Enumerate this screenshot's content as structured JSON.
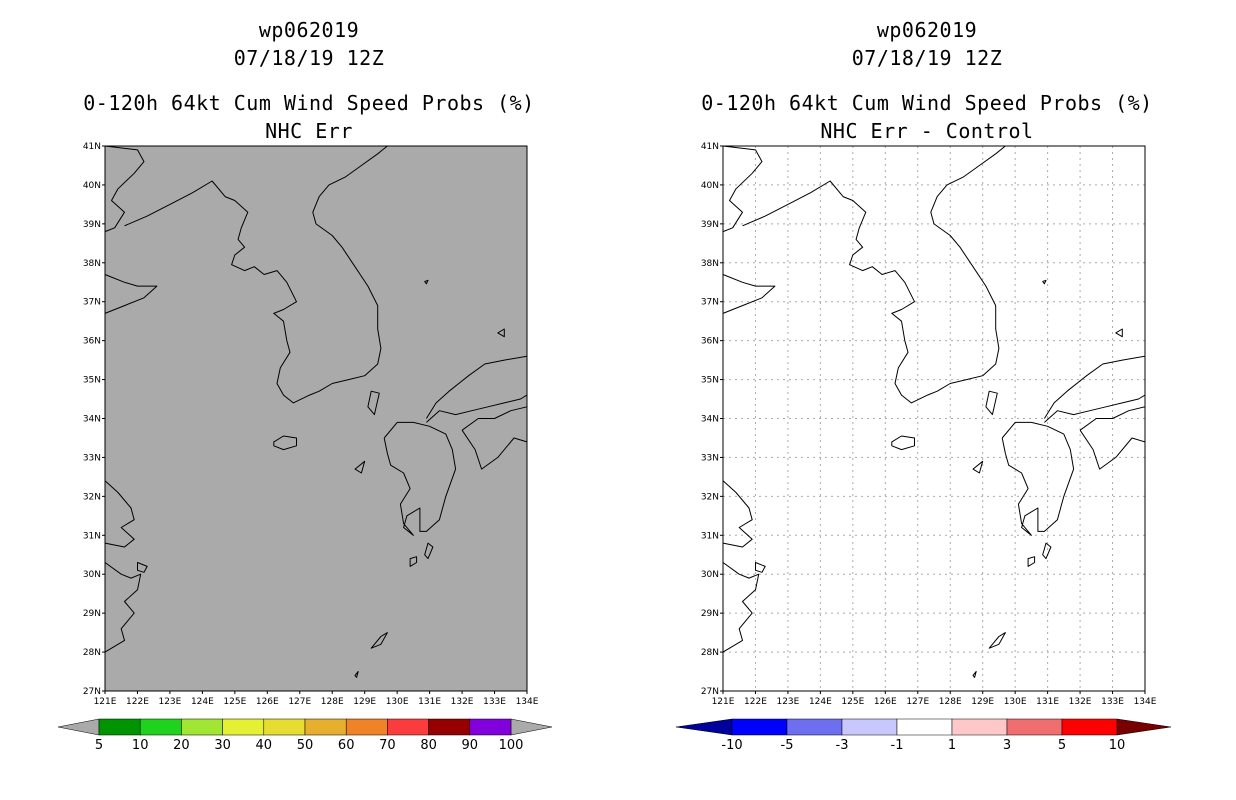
{
  "panels": [
    {
      "id": "left",
      "storm_id": "wp062019",
      "date": "07/18/19 12Z",
      "product": "0-120h 64kt Cum Wind Speed Probs (%)",
      "subtitle": "NHC Err",
      "map_fill": "#aaaaaa",
      "grid": false,
      "colorbar": {
        "labels": [
          "5",
          "10",
          "20",
          "30",
          "40",
          "50",
          "60",
          "70",
          "80",
          "90",
          "100"
        ],
        "colors": [
          "#009400",
          "#1ed21e",
          "#a0e632",
          "#e6f032",
          "#e6dc32",
          "#e6af2d",
          "#f08228",
          "#fa3c3c",
          "#960000",
          "#8200dc"
        ],
        "end_color": "#aaaaaa"
      }
    },
    {
      "id": "right",
      "storm_id": "wp062019",
      "date": "07/18/19 12Z",
      "product": "0-120h 64kt Cum Wind Speed Probs (%)",
      "subtitle": "NHC Err - Control",
      "map_fill": "#ffffff",
      "grid": true,
      "colorbar": {
        "labels": [
          "-10",
          "-5",
          "-3",
          "-1",
          "1",
          "3",
          "5",
          "10"
        ],
        "colors": [
          "#0000ff",
          "#6e6ef0",
          "#c8c8ff",
          "#ffffff",
          "#ffc8c8",
          "#f06e6e",
          "#ff0000"
        ],
        "start_color": "#00009b",
        "end_color": "#780000"
      }
    }
  ],
  "map_data": {
    "region": "Korean Peninsula, Yellow Sea, East China Sea, southern Japan",
    "lon_labels": [
      "121E",
      "122E",
      "123E",
      "124E",
      "125E",
      "126E",
      "127E",
      "128E",
      "129E",
      "130E",
      "131E",
      "132E",
      "133E",
      "134E"
    ],
    "lat_labels": [
      "27N",
      "28N",
      "29N",
      "30N",
      "31N",
      "32N",
      "33N",
      "34N",
      "35N",
      "36N",
      "37N",
      "38N",
      "39N",
      "40N",
      "41N"
    ],
    "lon_range": [
      121,
      134
    ],
    "lat_range": [
      27,
      41
    ]
  }
}
